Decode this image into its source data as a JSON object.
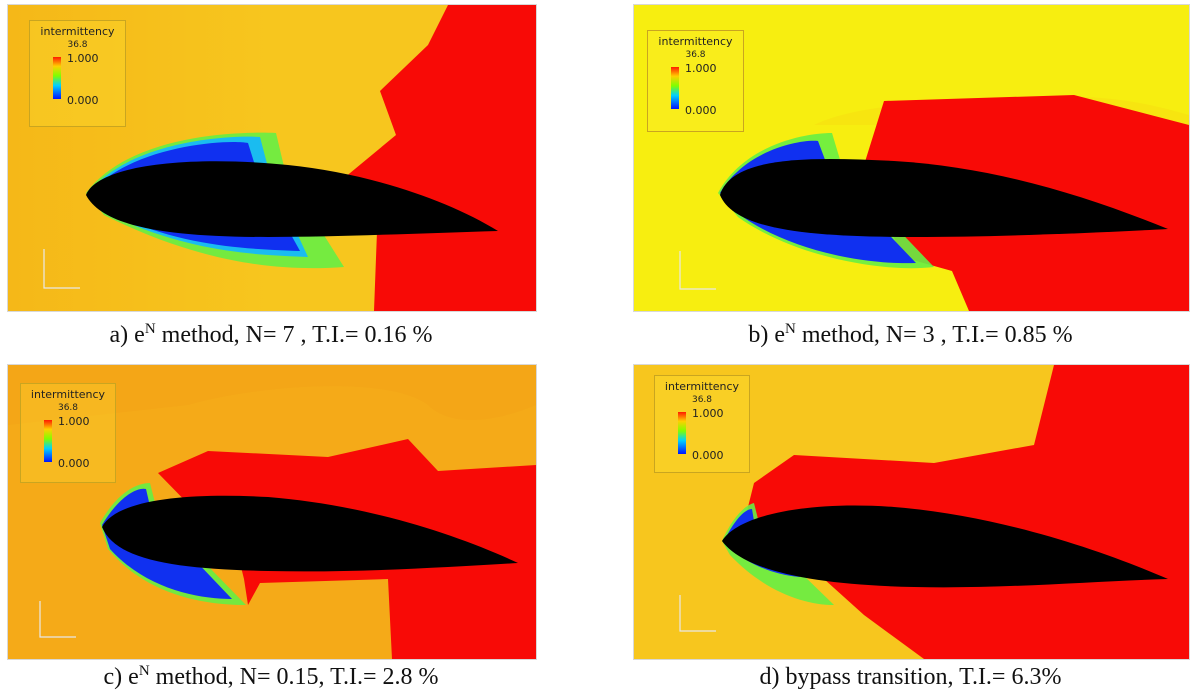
{
  "legend": {
    "title": "intermittency",
    "subtitle": "36.8",
    "max_label": "1.000",
    "min_label": "0.000"
  },
  "panels": [
    {
      "caption_prefix": "a) e",
      "caption_sup": "N",
      "caption_rest": " method, N= 7 , T.I.= 0.16 %"
    },
    {
      "caption_prefix": "b) e",
      "caption_sup": "N",
      "caption_rest": " method, N= 3 , T.I.= 0.85 %"
    },
    {
      "caption_prefix": "c) e",
      "caption_sup": "N",
      "caption_rest": " method, N= 0.15, T.I.= 2.8 %"
    },
    {
      "caption_prefix": "d) bypass transition, T.I.= 6.3%",
      "caption_sup": "",
      "caption_rest": ""
    }
  ],
  "colors": {
    "freestream_a": "#f7c61e",
    "freestream_b": "#f7ee10",
    "freestream_c": "#f5aa18",
    "freestream_d": "#f7c61e",
    "turbulent": "#f80a06",
    "airfoil": "#000000",
    "laminar": "#1030f0"
  }
}
